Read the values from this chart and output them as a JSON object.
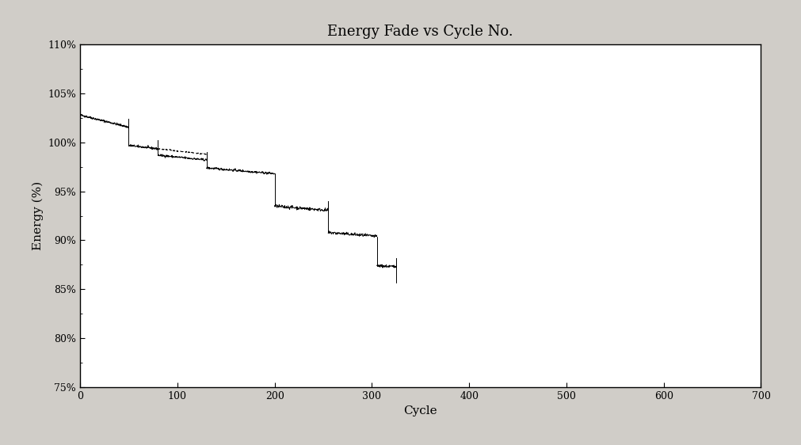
{
  "title": "Energy Fade vs Cycle No.",
  "xlabel": "Cycle",
  "ylabel": "Energy (%)",
  "xlim": [
    0,
    700
  ],
  "ylim": [
    0.75,
    1.1
  ],
  "yticks": [
    0.75,
    0.8,
    0.85,
    0.9,
    0.95,
    1.0,
    1.05,
    1.1
  ],
  "xticks": [
    0,
    100,
    200,
    300,
    400,
    500,
    600,
    700
  ],
  "fig_bg": "#d0cdc8",
  "plot_bg": "#ffffff",
  "line_color": "#000000",
  "title_fontsize": 13,
  "label_fontsize": 11,
  "tick_fontsize": 9
}
